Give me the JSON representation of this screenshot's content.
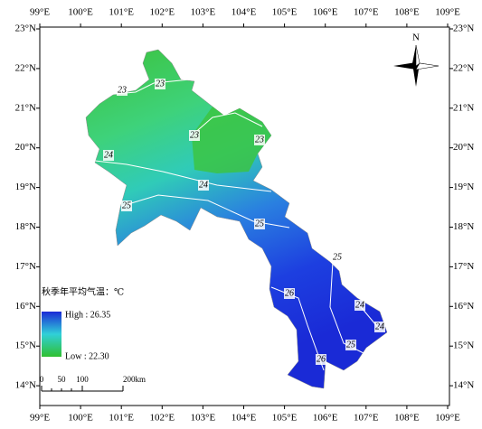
{
  "map": {
    "lon_labels": [
      "99°E",
      "100°E",
      "101°E",
      "102°E",
      "103°E",
      "104°E",
      "105°E",
      "106°E",
      "107°E",
      "108°E",
      "109°E"
    ],
    "lat_labels": [
      "23°N",
      "22°N",
      "21°N",
      "20°N",
      "19°N",
      "18°N",
      "17°N",
      "16°N",
      "15°N",
      "14°N"
    ],
    "contour_labels": [
      23,
      23,
      23,
      23,
      24,
      24,
      25,
      25,
      25,
      26,
      24,
      24,
      25,
      26
    ],
    "north": "N"
  },
  "legend": {
    "title": "秋季年平均气温：℃",
    "high": "High : 26.35",
    "low": "Low : 22.30"
  },
  "scale_bar": {
    "labels": [
      "0",
      "50",
      "100",
      "200km"
    ]
  }
}
